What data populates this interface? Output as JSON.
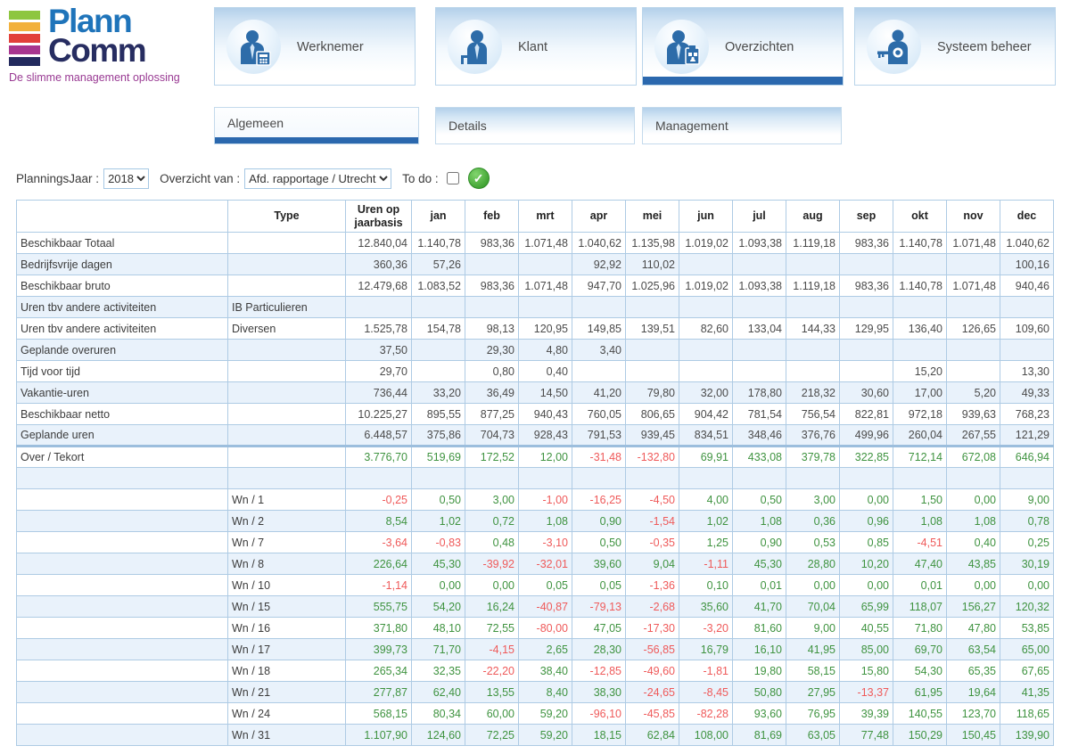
{
  "logo": {
    "title_line1": "Plann",
    "title_line2": "Comm",
    "tagline": "De slimme management oplossing",
    "bar_colors": [
      "#8dc63f",
      "#f2b13c",
      "#e2403a",
      "#a8368f",
      "#232a5e"
    ]
  },
  "nav": {
    "buttons": [
      {
        "label": "Werknemer",
        "icon": "worker-icon",
        "selected": false
      },
      {
        "label": "Klant",
        "icon": "customer-icon",
        "selected": false
      },
      {
        "label": "Overzichten",
        "icon": "overviews-icon",
        "selected": true
      },
      {
        "label": "Systeem beheer",
        "icon": "system-admin-key-icon",
        "selected": false
      }
    ]
  },
  "tabs": [
    {
      "label": "Algemeen",
      "selected": true
    },
    {
      "label": "Details",
      "selected": false
    },
    {
      "label": "Management",
      "selected": false
    }
  ],
  "filters": {
    "planningsjaar_label": "PlanningsJaar :",
    "planningsjaar_value": "2018",
    "overzicht_label": "Overzicht van  :",
    "overzicht_value": "Afd. rapportage / Utrecht",
    "todo_label": "To do  :",
    "todo_checked": false,
    "confirm_icon": "green-check-icon"
  },
  "colors": {
    "positive": "#3f9340",
    "negative": "#ef5a5a",
    "accent_blue": "#2b68ae",
    "grid_border": "#aecbe4",
    "stripe": "#e9f2fb"
  },
  "table": {
    "columns": [
      "",
      "Type",
      "Uren op jaarbasis",
      "jan",
      "feb",
      "mrt",
      "apr",
      "mei",
      "jun",
      "jul",
      "aug",
      "sep",
      "okt",
      "nov",
      "dec"
    ],
    "rows": [
      {
        "label": "Beschikbaar Totaal",
        "type": "",
        "signed": false,
        "thick_top": false,
        "values": [
          "12.840,04",
          "1.140,78",
          "983,36",
          "1.071,48",
          "1.040,62",
          "1.135,98",
          "1.019,02",
          "1.093,38",
          "1.119,18",
          "983,36",
          "1.140,78",
          "1.071,48",
          "1.040,62"
        ]
      },
      {
        "label": "Bedrijfsvrije dagen",
        "type": "",
        "signed": false,
        "thick_top": false,
        "values": [
          "360,36",
          "57,26",
          "",
          "",
          "92,92",
          "110,02",
          "",
          "",
          "",
          "",
          "",
          "",
          "100,16"
        ]
      },
      {
        "label": "Beschikbaar bruto",
        "type": "",
        "signed": false,
        "thick_top": false,
        "values": [
          "12.479,68",
          "1.083,52",
          "983,36",
          "1.071,48",
          "947,70",
          "1.025,96",
          "1.019,02",
          "1.093,38",
          "1.119,18",
          "983,36",
          "1.140,78",
          "1.071,48",
          "940,46"
        ]
      },
      {
        "label": "Uren tbv andere activiteiten",
        "type": "IB Particulieren",
        "signed": false,
        "thick_top": false,
        "values": [
          "",
          "",
          "",
          "",
          "",
          "",
          "",
          "",
          "",
          "",
          "",
          "",
          ""
        ]
      },
      {
        "label": "Uren tbv andere activiteiten",
        "type": "Diversen",
        "signed": false,
        "thick_top": false,
        "values": [
          "1.525,78",
          "154,78",
          "98,13",
          "120,95",
          "149,85",
          "139,51",
          "82,60",
          "133,04",
          "144,33",
          "129,95",
          "136,40",
          "126,65",
          "109,60"
        ]
      },
      {
        "label": "Geplande overuren",
        "type": "",
        "signed": false,
        "thick_top": false,
        "values": [
          "37,50",
          "",
          "29,30",
          "4,80",
          "3,40",
          "",
          "",
          "",
          "",
          "",
          "",
          "",
          ""
        ]
      },
      {
        "label": "Tijd voor tijd",
        "type": "",
        "signed": false,
        "thick_top": false,
        "values": [
          "29,70",
          "",
          "0,80",
          "0,40",
          "",
          "",
          "",
          "",
          "",
          "",
          "15,20",
          "",
          "13,30"
        ]
      },
      {
        "label": "Vakantie-uren",
        "type": "",
        "signed": false,
        "thick_top": false,
        "values": [
          "736,44",
          "33,20",
          "36,49",
          "14,50",
          "41,20",
          "79,80",
          "32,00",
          "178,80",
          "218,32",
          "30,60",
          "17,00",
          "5,20",
          "49,33"
        ]
      },
      {
        "label": "Beschikbaar netto",
        "type": "",
        "signed": false,
        "thick_top": false,
        "values": [
          "10.225,27",
          "895,55",
          "877,25",
          "940,43",
          "760,05",
          "806,65",
          "904,42",
          "781,54",
          "756,54",
          "822,81",
          "972,18",
          "939,63",
          "768,23"
        ]
      },
      {
        "label": "Geplande uren",
        "type": "",
        "signed": false,
        "thick_top": false,
        "values": [
          "6.448,57",
          "375,86",
          "704,73",
          "928,43",
          "791,53",
          "939,45",
          "834,51",
          "348,46",
          "376,76",
          "499,96",
          "260,04",
          "267,55",
          "121,29"
        ]
      },
      {
        "label": "Over / Tekort",
        "type": "",
        "signed": true,
        "thick_top": true,
        "values": [
          "3.776,70",
          "519,69",
          "172,52",
          "12,00",
          "-31,48",
          "-132,80",
          "69,91",
          "433,08",
          "379,78",
          "322,85",
          "712,14",
          "672,08",
          "646,94"
        ]
      },
      {
        "label": "",
        "type": "",
        "signed": false,
        "thick_top": false,
        "values": [
          "",
          "",
          "",
          "",
          "",
          "",
          "",
          "",
          "",
          "",
          "",
          "",
          ""
        ]
      },
      {
        "label": "",
        "type": "Wn / 1",
        "signed": true,
        "thick_top": false,
        "values": [
          "-0,25",
          "0,50",
          "3,00",
          "-1,00",
          "-16,25",
          "-4,50",
          "4,00",
          "0,50",
          "3,00",
          "0,00",
          "1,50",
          "0,00",
          "9,00"
        ]
      },
      {
        "label": "",
        "type": "Wn / 2",
        "signed": true,
        "thick_top": false,
        "values": [
          "8,54",
          "1,02",
          "0,72",
          "1,08",
          "0,90",
          "-1,54",
          "1,02",
          "1,08",
          "0,36",
          "0,96",
          "1,08",
          "1,08",
          "0,78"
        ]
      },
      {
        "label": "",
        "type": "Wn / 7",
        "signed": true,
        "thick_top": false,
        "values": [
          "-3,64",
          "-0,83",
          "0,48",
          "-3,10",
          "0,50",
          "-0,35",
          "1,25",
          "0,90",
          "0,53",
          "0,85",
          "-4,51",
          "0,40",
          "0,25"
        ]
      },
      {
        "label": "",
        "type": "Wn / 8",
        "signed": true,
        "thick_top": false,
        "values": [
          "226,64",
          "45,30",
          "-39,92",
          "-32,01",
          "39,60",
          "9,04",
          "-1,11",
          "45,30",
          "28,80",
          "10,20",
          "47,40",
          "43,85",
          "30,19"
        ]
      },
      {
        "label": "",
        "type": "Wn / 10",
        "signed": true,
        "thick_top": false,
        "values": [
          "-1,14",
          "0,00",
          "0,00",
          "0,05",
          "0,05",
          "-1,36",
          "0,10",
          "0,01",
          "0,00",
          "0,00",
          "0,01",
          "0,00",
          "0,00"
        ]
      },
      {
        "label": "",
        "type": "Wn / 15",
        "signed": true,
        "thick_top": false,
        "values": [
          "555,75",
          "54,20",
          "16,24",
          "-40,87",
          "-79,13",
          "-2,68",
          "35,60",
          "41,70",
          "70,04",
          "65,99",
          "118,07",
          "156,27",
          "120,32"
        ]
      },
      {
        "label": "",
        "type": "Wn / 16",
        "signed": true,
        "thick_top": false,
        "values": [
          "371,80",
          "48,10",
          "72,55",
          "-80,00",
          "47,05",
          "-17,30",
          "-3,20",
          "81,60",
          "9,00",
          "40,55",
          "71,80",
          "47,80",
          "53,85"
        ]
      },
      {
        "label": "",
        "type": "Wn / 17",
        "signed": true,
        "thick_top": false,
        "values": [
          "399,73",
          "71,70",
          "-4,15",
          "2,65",
          "28,30",
          "-56,85",
          "16,79",
          "16,10",
          "41,95",
          "85,00",
          "69,70",
          "63,54",
          "65,00"
        ]
      },
      {
        "label": "",
        "type": "Wn / 18",
        "signed": true,
        "thick_top": false,
        "values": [
          "265,34",
          "32,35",
          "-22,20",
          "38,40",
          "-12,85",
          "-49,60",
          "-1,81",
          "19,80",
          "58,15",
          "15,80",
          "54,30",
          "65,35",
          "67,65"
        ]
      },
      {
        "label": "",
        "type": "Wn / 21",
        "signed": true,
        "thick_top": false,
        "values": [
          "277,87",
          "62,40",
          "13,55",
          "8,40",
          "38,30",
          "-24,65",
          "-8,45",
          "50,80",
          "27,95",
          "-13,37",
          "61,95",
          "19,64",
          "41,35"
        ]
      },
      {
        "label": "",
        "type": "Wn / 24",
        "signed": true,
        "thick_top": false,
        "values": [
          "568,15",
          "80,34",
          "60,00",
          "59,20",
          "-96,10",
          "-45,85",
          "-82,28",
          "93,60",
          "76,95",
          "39,39",
          "140,55",
          "123,70",
          "118,65"
        ]
      },
      {
        "label": "",
        "type": "Wn / 31",
        "signed": true,
        "thick_top": false,
        "values": [
          "1.107,90",
          "124,60",
          "72,25",
          "59,20",
          "18,15",
          "62,84",
          "108,00",
          "81,69",
          "63,05",
          "77,48",
          "150,29",
          "150,45",
          "139,90"
        ]
      }
    ]
  }
}
